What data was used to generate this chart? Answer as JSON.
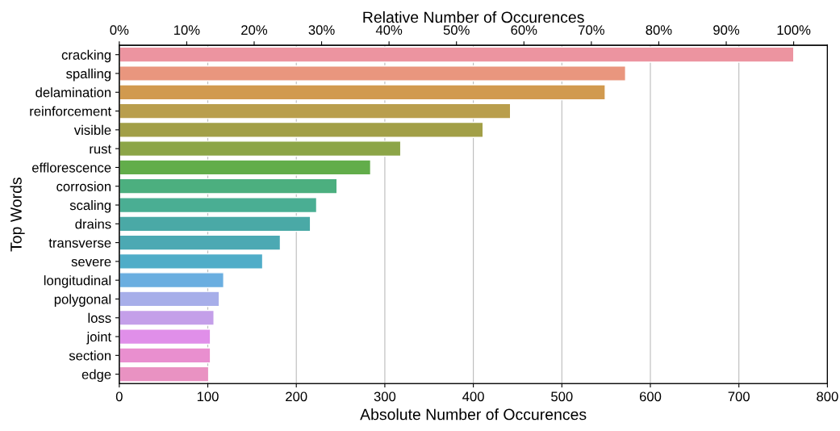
{
  "chart_data": {
    "type": "bar",
    "orientation": "horizontal",
    "xlabel": "Absolute Number of Occurences",
    "ylabel": "Top Words",
    "x2label": "Relative Number of Occurences",
    "categories": [
      "cracking",
      "spalling",
      "delamination",
      "reinforcement",
      "visible",
      "rust",
      "efflorescence",
      "corrosion",
      "scaling",
      "drains",
      "transverse",
      "severe",
      "longitudinal",
      "polygonal",
      "loss",
      "joint",
      "section",
      "edge"
    ],
    "values": [
      762,
      572,
      549,
      442,
      411,
      318,
      284,
      246,
      223,
      216,
      182,
      162,
      118,
      113,
      107,
      103,
      103,
      101
    ],
    "colors": [
      "#ec94a0",
      "#e9967e",
      "#d19a4f",
      "#b99e4d",
      "#a29f47",
      "#8ca547",
      "#62ad4a",
      "#4caf7f",
      "#4aae93",
      "#4aa9a6",
      "#4ca9b3",
      "#50adc8",
      "#6aaee0",
      "#a7aee9",
      "#c49fe9",
      "#e08fe9",
      "#e98fcf",
      "#e992c2"
    ],
    "xlim": [
      0,
      800
    ],
    "xticks": [
      0,
      100,
      200,
      300,
      400,
      500,
      600,
      700,
      800
    ],
    "x2lim": [
      0,
      105
    ],
    "x2ticks": [
      {
        "value": 0,
        "label": "0%"
      },
      {
        "value": 10,
        "label": "10%"
      },
      {
        "value": 20,
        "label": "20%"
      },
      {
        "value": 30,
        "label": "30%"
      },
      {
        "value": 40,
        "label": "40%"
      },
      {
        "value": 50,
        "label": "50%"
      },
      {
        "value": 60,
        "label": "60%"
      },
      {
        "value": 70,
        "label": "70%"
      },
      {
        "value": 80,
        "label": "80%"
      },
      {
        "value": 90,
        "label": "90%"
      },
      {
        "value": 100,
        "label": "100%"
      }
    ],
    "grid": "x"
  }
}
